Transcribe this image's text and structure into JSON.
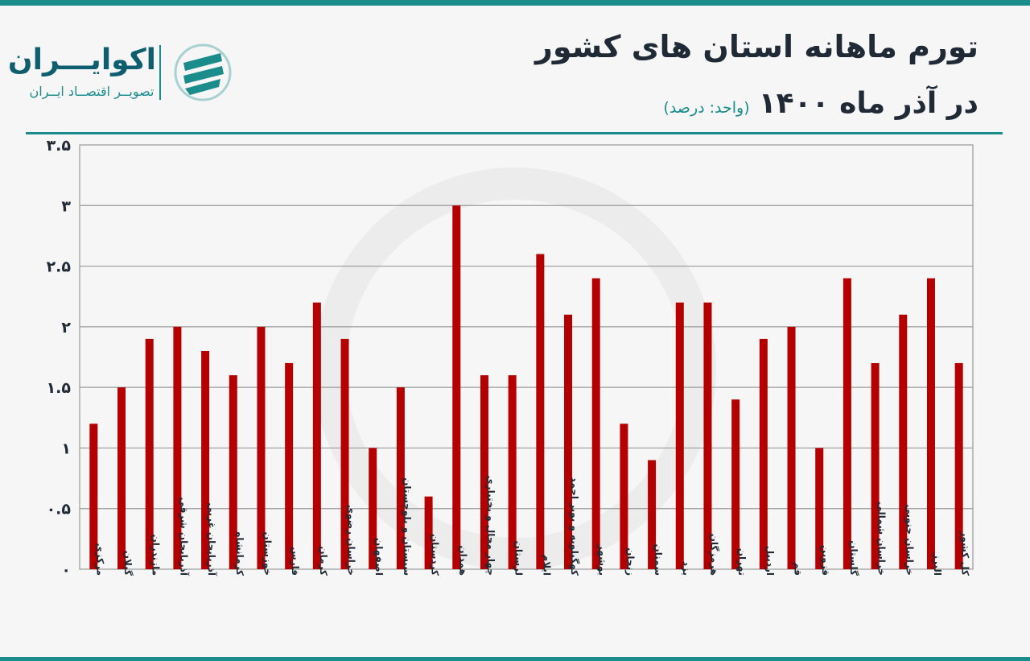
{
  "header": {
    "title_line1": "تورم ماهانه استان های کشور",
    "title_line2": "در آذر ماه ۱۴۰۰",
    "unit_note": "(واحد: درصد)"
  },
  "logo": {
    "name": "اکوایـــران",
    "tagline": "تصویــر اقتصــاد ایــران",
    "icon": "ecoiran-logo-icon"
  },
  "colors": {
    "accent": "#1a8c8c",
    "bar": "#b40000",
    "text": "#1f2a36"
  },
  "chart_data": {
    "type": "bar",
    "categories": [
      "مرکزی",
      "گیلان",
      "مازندران",
      "آذربایجان شرقی",
      "آذربایجان غربی",
      "کرمانشاه",
      "خوزستان",
      "فارس",
      "کرمان",
      "خراسان رضوی",
      "اصفهان",
      "سیستان و بلوچستان",
      "کردستان",
      "همدان",
      "چهار محال و بختیاری",
      "لرستان",
      "ایلام",
      "کهگیلویه و بویر احمد",
      "بوشهر",
      "زنجان",
      "سمنان",
      "یزد",
      "هرمزگان",
      "تهران",
      "اردبیل",
      "قم",
      "قزوین",
      "گلستان",
      "خراسان شمالی",
      "خراسان جنوبی",
      "البرز",
      "کل کشور"
    ],
    "values": [
      1.2,
      1.5,
      1.9,
      2.0,
      1.8,
      1.6,
      2.0,
      1.7,
      2.2,
      1.9,
      1.0,
      1.5,
      0.6,
      3.0,
      1.6,
      1.6,
      2.6,
      2.1,
      2.4,
      1.2,
      0.9,
      2.2,
      2.2,
      1.4,
      1.9,
      2.0,
      1.0,
      2.4,
      1.7,
      2.1,
      2.4,
      1.7
    ],
    "ylim": [
      0,
      3.5
    ],
    "yticks": [
      "۰",
      "۰.۵",
      "۱",
      "۱.۵",
      "۲",
      "۲.۵",
      "۳",
      "۳.۵"
    ],
    "ytick_values": [
      0,
      0.5,
      1,
      1.5,
      2,
      2.5,
      3,
      3.5
    ],
    "grid": true,
    "legend": "none"
  }
}
